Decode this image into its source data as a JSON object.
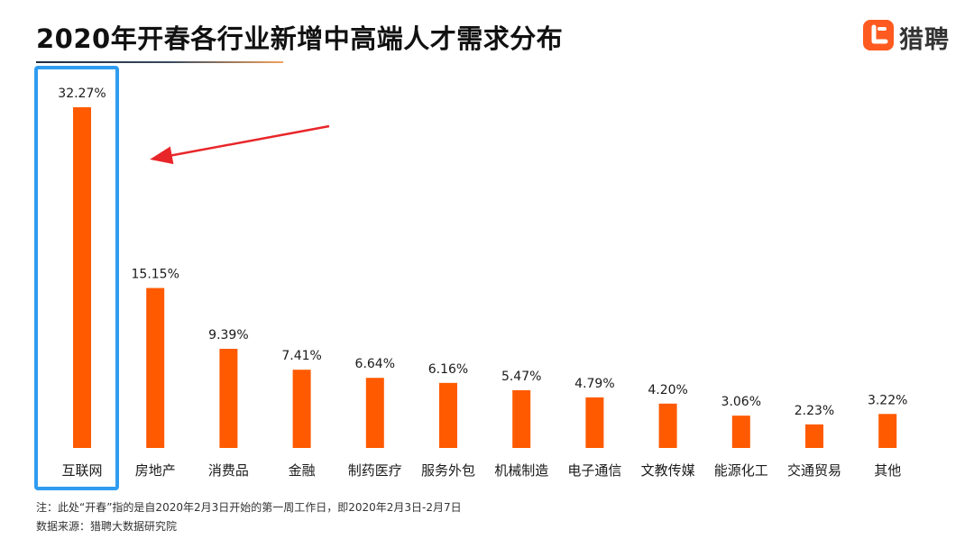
{
  "title": "2020年开春各行业新增中高端人才需求分布",
  "logo": {
    "icon": "liepin-logo-icon",
    "text": "猎聘"
  },
  "chart_data": {
    "type": "bar",
    "title": "2020年开春各行业新增中高端人才需求分布",
    "categories": [
      "互联网",
      "房地产",
      "消费品",
      "金融",
      "制药医疗",
      "服务外包",
      "机械制造",
      "电子通信",
      "文教传媒",
      "能源化工",
      "交通贸易",
      "其他"
    ],
    "values": [
      32.27,
      15.15,
      9.39,
      7.41,
      6.64,
      6.16,
      5.47,
      4.79,
      4.2,
      3.06,
      2.23,
      3.22
    ],
    "value_labels": [
      "32.27%",
      "15.15%",
      "9.39%",
      "7.41%",
      "6.64%",
      "6.16%",
      "5.47%",
      "4.79%",
      "4.20%",
      "3.06%",
      "2.23%",
      "3.22%"
    ],
    "unit": "%",
    "xlabel": "",
    "ylabel": "",
    "ylim": [
      0,
      32.27
    ],
    "grid": false,
    "legend": "none",
    "bar_color": "#ff5a00",
    "highlight": {
      "category": "互联网",
      "box_color": "#2f9cf0",
      "arrow_color": "#e8262a"
    }
  },
  "notes": {
    "note": "注：此处“开春”指的是自2020年2月3日开始的第一周工作日，即2020年2月3日-2月7日",
    "source": "数据来源：猎聘大数据研究院"
  }
}
